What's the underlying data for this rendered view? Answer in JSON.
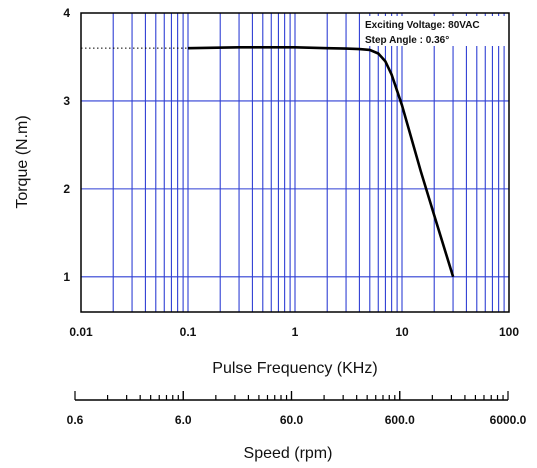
{
  "chart_data": {
    "type": "line",
    "xscale": "log",
    "xlim": [
      0.01,
      100
    ],
    "ylim": [
      0.6,
      4
    ],
    "grid": true,
    "xlabel": "Pulse Frequency (KHz)",
    "ylabel": "Torque  (N.m)",
    "x_ticks": [
      "0.01",
      "0.1",
      "1",
      "10",
      "100"
    ],
    "y_ticks": [
      "1",
      "2",
      "3",
      "4"
    ],
    "colors": {
      "grid": "#2f3fd4",
      "curve": "#000000",
      "frame": "#000000"
    },
    "series": [
      {
        "x": [
          0.1,
          0.3,
          1,
          2,
          3,
          4,
          5,
          6,
          7,
          8,
          10,
          15,
          20,
          30
        ],
        "y": [
          3.6,
          3.61,
          3.61,
          3.6,
          3.595,
          3.59,
          3.58,
          3.54,
          3.45,
          3.3,
          2.95,
          2.2,
          1.7,
          1.0
        ]
      }
    ],
    "reference_line": {
      "y": 3.6,
      "x_from": 0.01,
      "x_to": 0.1,
      "style": "dotted"
    },
    "annotations": [
      "Exciting Voltage: 80VAC",
      "Step Angle :  0.36°"
    ],
    "secondary_axis": {
      "label": "Speed (rpm)",
      "scale": "log",
      "range": [
        0.6,
        6000
      ],
      "ticks": [
        "0.6",
        "6.0",
        "60.0",
        "600.0",
        "6000.0"
      ]
    }
  }
}
